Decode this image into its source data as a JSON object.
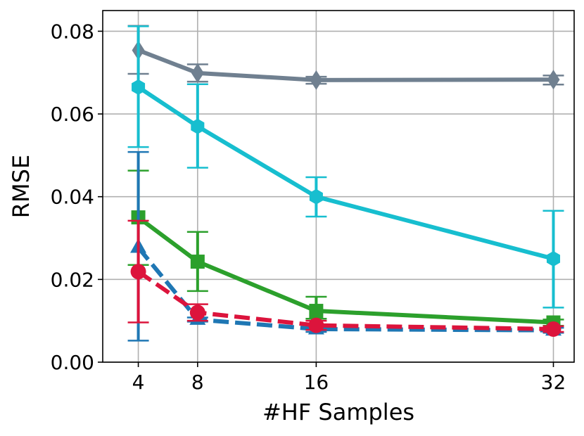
{
  "chart_data": {
    "type": "line",
    "title": "",
    "xlabel": "#HF Samples",
    "ylabel": "RMSE",
    "xlim": [
      1.6,
      33.4
    ],
    "ylim": [
      0.0,
      0.085
    ],
    "xticks": [
      4,
      8,
      16,
      32
    ],
    "xtick_labels": [
      "4",
      "8",
      "16",
      "32"
    ],
    "yticks": [
      0.0,
      0.02,
      0.04,
      0.06,
      0.08
    ],
    "ytick_labels": [
      "0.00",
      "0.02",
      "0.04",
      "0.06",
      "0.08"
    ],
    "grid": true,
    "legend": "none",
    "x": [
      4,
      8,
      16,
      32
    ],
    "series": [
      {
        "color": "#708090",
        "dash": "solid",
        "marker": "diamond",
        "values": [
          0.0754,
          0.0699,
          0.0682,
          0.0683
        ],
        "err_low": [
          0.0697,
          0.0678,
          0.0673,
          0.0671
        ],
        "err_high": [
          0.0813,
          0.072,
          0.069,
          0.0693
        ]
      },
      {
        "color": "#17becf",
        "dash": "solid",
        "marker": "hexagon",
        "values": [
          0.0665,
          0.057,
          0.04,
          0.025
        ],
        "err_low": [
          0.052,
          0.047,
          0.0352,
          0.0132
        ],
        "err_high": [
          0.0812,
          0.0672,
          0.0447,
          0.0366
        ]
      },
      {
        "color": "#2ca02c",
        "dash": "solid",
        "marker": "square",
        "values": [
          0.035,
          0.0243,
          0.0124,
          0.0096
        ],
        "err_low": [
          0.0235,
          0.0172,
          0.0105,
          0.0088
        ],
        "err_high": [
          0.0463,
          0.0315,
          0.0158,
          0.0103
        ]
      },
      {
        "color": "#1f77b4",
        "dash": "dashed",
        "marker": "triangle",
        "values": [
          0.0277,
          0.0103,
          0.008,
          0.0077
        ],
        "err_low": [
          0.0052,
          0.0098,
          0.0073,
          0.0071
        ],
        "err_high": [
          0.0508,
          0.0108,
          0.0087,
          0.0083
        ]
      },
      {
        "color": "#dc143c",
        "dash": "dashed",
        "marker": "circle",
        "values": [
          0.0219,
          0.012,
          0.0089,
          0.008
        ],
        "err_low": [
          0.0096,
          0.01,
          0.0078,
          0.0073
        ],
        "err_high": [
          0.0342,
          0.014,
          0.01,
          0.0087
        ]
      }
    ]
  }
}
